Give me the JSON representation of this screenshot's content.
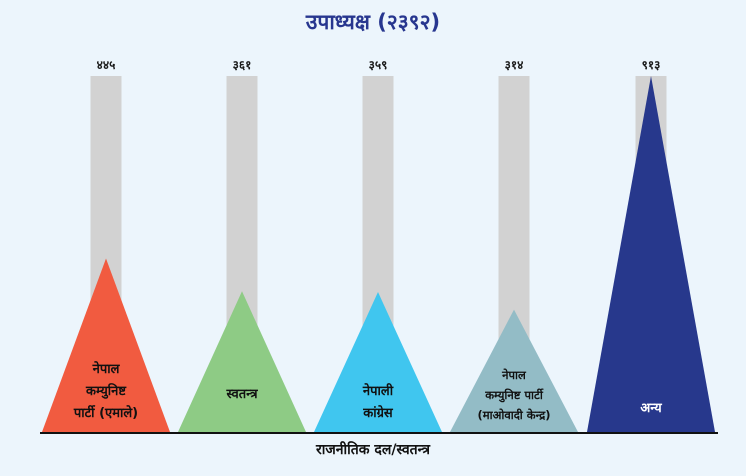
{
  "chart_data": {
    "type": "bar",
    "title": "उपाध्यक्ष (२३९२)",
    "xlabel": "राजनीतिक दल/स्वतन्त्र",
    "ylabel": "",
    "ylim": [
      0,
      913
    ],
    "grid": false,
    "categories": [
      "नेपाल कम्युनिष्ट पार्टी (एमाले)",
      "स्वतन्त्र",
      "नेपाली कांग्रेस",
      "नेपाल कम्युनिष्ट पार्टी (माओवादी केन्द्र)",
      "अन्य"
    ],
    "category_lines": [
      [
        "नेपाल",
        "कम्युनिष्ट",
        "पार्टी (एमाले)"
      ],
      [
        "स्वतन्त्र"
      ],
      [
        "नेपाली",
        "कांग्रेस"
      ],
      [
        "नेपाल",
        "कम्युनिष्ट पार्टी",
        "(माओवादी केन्द्र)"
      ],
      [
        "अन्य"
      ]
    ],
    "values": [
      445,
      361,
      359,
      314,
      913
    ],
    "value_labels": [
      "४४५",
      "३६१",
      "३५९",
      "३१४",
      "९१३"
    ],
    "colors": [
      "#f15b40",
      "#8ecb85",
      "#40c6ef",
      "#93bcc6",
      "#27388c"
    ],
    "text_colors": [
      "#111111",
      "#111111",
      "#111111",
      "#111111",
      "#ffffff"
    ]
  }
}
